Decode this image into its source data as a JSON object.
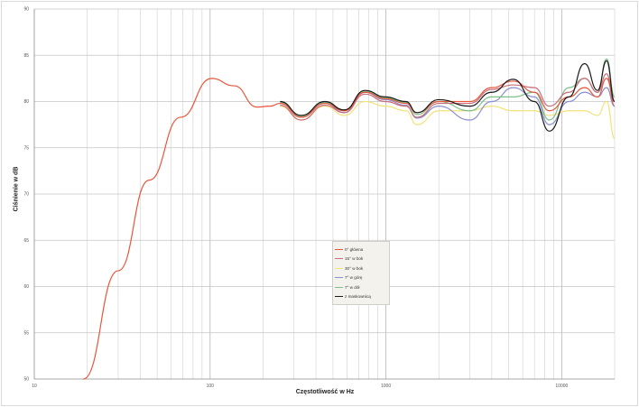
{
  "chart_data": {
    "type": "line",
    "title": "",
    "xlabel": "Częstotliwość w Hz",
    "ylabel": "Ciśnienie w dB",
    "x_scale": "log",
    "xlim": [
      10,
      20000
    ],
    "ylim": [
      50,
      90
    ],
    "x_ticks": [
      "10",
      "100",
      "1000",
      "10000"
    ],
    "y_ticks": [
      "90",
      "85",
      "80",
      "75",
      "70",
      "65",
      "60",
      "55",
      "50"
    ],
    "grid": true,
    "legend_position": "center",
    "series": [
      {
        "name": "0° główna",
        "color": "#e8553a",
        "x": [
          19,
          30,
          45,
          68,
          102,
          137,
          185,
          220,
          250,
          330,
          450,
          580,
          760,
          990,
          1300,
          1500,
          2000,
          3000,
          4000,
          5300,
          7000,
          8500,
          11000,
          13500,
          16000,
          18000,
          20000
        ],
        "y": [
          50,
          61.7,
          71.5,
          78.3,
          82.5,
          81.7,
          79.4,
          79.5,
          79.8,
          78.3,
          79.8,
          79.0,
          81.0,
          80.3,
          79.8,
          78.8,
          80.0,
          80.0,
          81.5,
          82.2,
          81.0,
          79.0,
          80.5,
          81.5,
          80.5,
          82.5,
          80.0
        ]
      },
      {
        "name": "15° w bok",
        "color": "#c96b7a",
        "x": [
          250,
          330,
          450,
          580,
          760,
          990,
          1300,
          1500,
          2000,
          3000,
          4000,
          5300,
          7000,
          8500,
          11000,
          13500,
          16000,
          18000,
          20000
        ],
        "y": [
          79.6,
          78.0,
          79.6,
          78.8,
          80.8,
          80.0,
          79.5,
          78.3,
          79.8,
          79.8,
          81.3,
          81.8,
          81.5,
          79.5,
          81.0,
          82.5,
          81.0,
          83.0,
          79.5
        ]
      },
      {
        "name": "30° w bok",
        "color": "#f2e27a",
        "x": [
          250,
          330,
          450,
          580,
          760,
          990,
          1300,
          1500,
          2000,
          3000,
          4000,
          5300,
          7000,
          8500,
          11000,
          13500,
          16000,
          18000,
          20000
        ],
        "y": [
          79.5,
          78.0,
          79.5,
          78.5,
          80.0,
          79.5,
          79.0,
          77.5,
          79.0,
          79.0,
          79.5,
          79.0,
          79.0,
          78.5,
          79.0,
          79.0,
          78.5,
          80.0,
          76.0
        ]
      },
      {
        "name": "7° w górę",
        "color": "#8a8fd0",
        "x": [
          250,
          330,
          450,
          580,
          760,
          990,
          1300,
          1500,
          2000,
          3000,
          4000,
          5300,
          7000,
          8500,
          11000,
          13500,
          16000,
          18000,
          20000
        ],
        "y": [
          79.8,
          78.3,
          79.8,
          78.8,
          81.0,
          80.2,
          79.6,
          78.2,
          79.5,
          78.0,
          80.0,
          81.5,
          80.5,
          77.5,
          80.0,
          81.0,
          80.5,
          81.5,
          79.5
        ]
      },
      {
        "name": "7° w dół",
        "color": "#7fbf8a",
        "x": [
          250,
          330,
          450,
          580,
          760,
          990,
          1300,
          1500,
          2000,
          3000,
          4000,
          5300,
          7000,
          8500,
          11000,
          13500,
          16000,
          18000,
          20000
        ],
        "y": [
          79.9,
          78.4,
          79.9,
          79.0,
          81.1,
          80.4,
          79.9,
          78.6,
          80.0,
          79.0,
          80.5,
          80.5,
          81.0,
          78.0,
          81.5,
          82.5,
          81.0,
          84.6,
          80.5
        ]
      },
      {
        "name": "z maskownicą",
        "color": "#1a1a1a",
        "x": [
          250,
          330,
          450,
          580,
          760,
          990,
          1300,
          1500,
          2000,
          3000,
          4000,
          5300,
          7000,
          8500,
          11000,
          13500,
          16000,
          18000,
          20000
        ],
        "y": [
          80.0,
          78.5,
          80.0,
          79.1,
          81.2,
          80.5,
          80.0,
          78.8,
          80.2,
          79.5,
          81.0,
          82.4,
          80.0,
          76.8,
          80.5,
          84.1,
          81.2,
          84.4,
          80.0
        ]
      }
    ]
  }
}
